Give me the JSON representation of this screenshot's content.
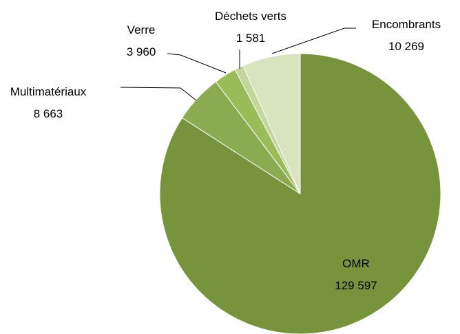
{
  "chart_data": {
    "type": "pie",
    "categories": [
      "OMR",
      "Multimatériaux",
      "Verre",
      "Déchets verts",
      "Encombrants"
    ],
    "values": [
      129597,
      8663,
      3960,
      1581,
      10269
    ],
    "value_labels": [
      "129 597",
      "8 663",
      "3 960",
      "1 581",
      "10 269"
    ],
    "colors": [
      "#77933c",
      "#8aab4f",
      "#9bbb59",
      "#c3d69b",
      "#d7e4bd"
    ]
  }
}
